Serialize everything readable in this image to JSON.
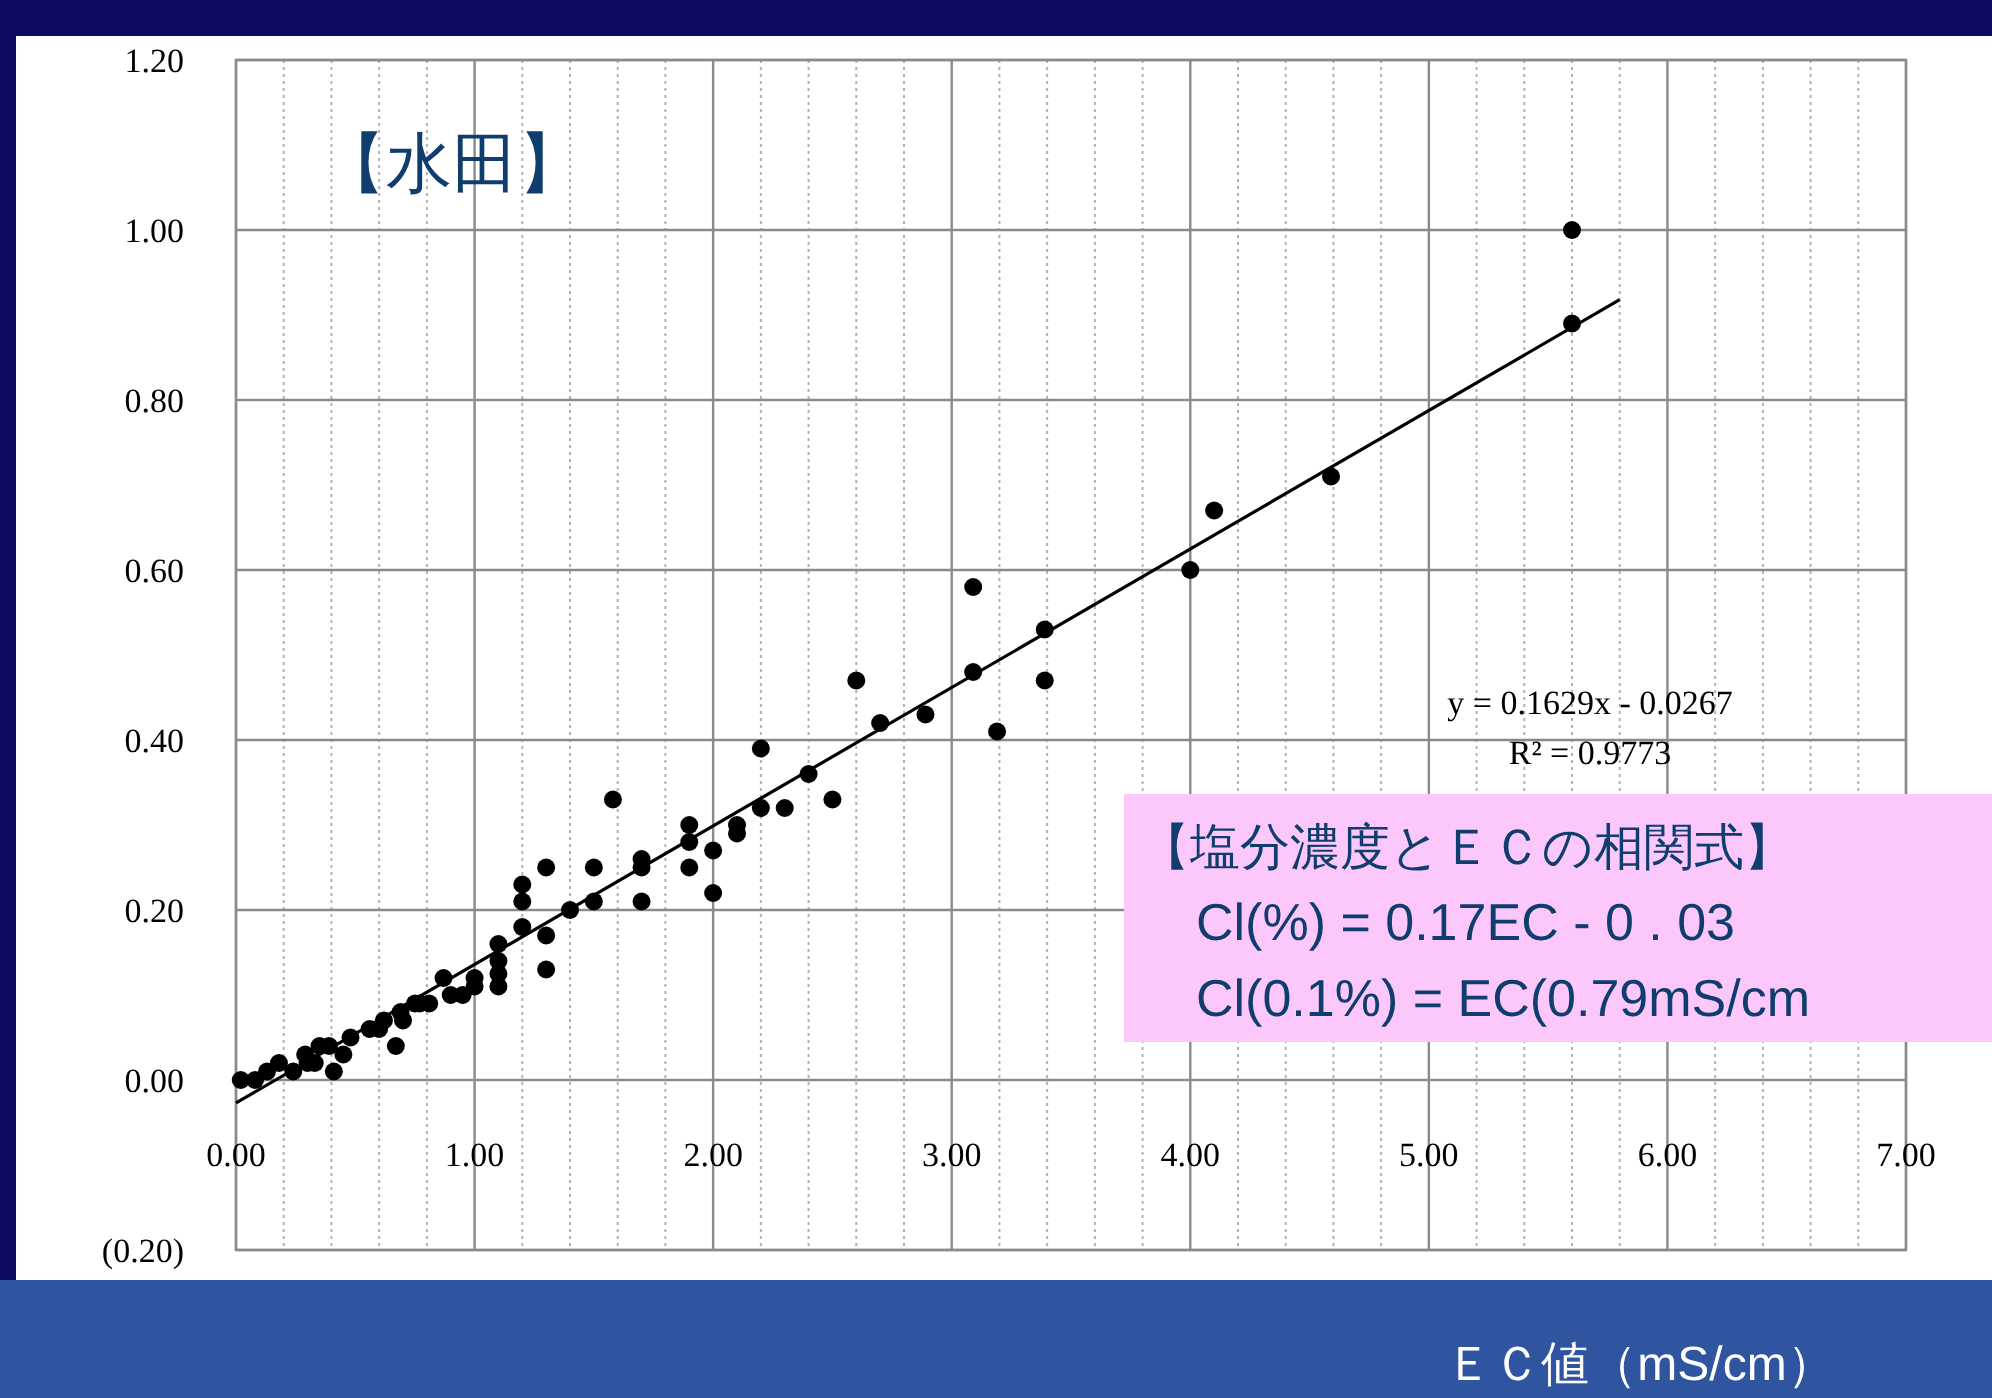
{
  "chart_data": {
    "type": "scatter",
    "title": "【水田】",
    "xlabel": "ＥＣ値（mS/cm）",
    "xlim": [
      0,
      7
    ],
    "ylim": [
      -0.2,
      1.2
    ],
    "xticks": [
      {
        "value": 0,
        "label": "0.00"
      },
      {
        "value": 1,
        "label": "1.00"
      },
      {
        "value": 2,
        "label": "2.00"
      },
      {
        "value": 3,
        "label": "3.00"
      },
      {
        "value": 4,
        "label": "4.00"
      },
      {
        "value": 5,
        "label": "5.00"
      },
      {
        "value": 6,
        "label": "6.00"
      },
      {
        "value": 7,
        "label": "7.00"
      }
    ],
    "yticks": [
      {
        "value": -0.2,
        "label": "(0.20)"
      },
      {
        "value": 0,
        "label": "0.00"
      },
      {
        "value": 0.2,
        "label": "0.20"
      },
      {
        "value": 0.4,
        "label": "0.40"
      },
      {
        "value": 0.6,
        "label": "0.60"
      },
      {
        "value": 0.8,
        "label": "0.80"
      },
      {
        "value": 1.0,
        "label": "1.00"
      },
      {
        "value": 1.2,
        "label": "1.20"
      }
    ],
    "grid": true,
    "series": [
      {
        "type": "scatter",
        "marker": "circle",
        "color": "#000000",
        "x": [
          5.6,
          5.6,
          4.59,
          4.1,
          4.0,
          3.39,
          3.39,
          3.09,
          3.09,
          3.19,
          2.89,
          2.7,
          2.6,
          2.5,
          2.4,
          2.3,
          2.2,
          2.2,
          2.1,
          2.1,
          2.0,
          2.0,
          1.9,
          1.9,
          1.9,
          1.7,
          1.7,
          1.7,
          1.58,
          1.5,
          1.5,
          1.4,
          1.3,
          1.3,
          1.3,
          1.2,
          1.2,
          1.2,
          1.1,
          1.1,
          1.1,
          1.1,
          1.0,
          1.0,
          0.95,
          0.9,
          0.87,
          0.81,
          0.77,
          0.75,
          0.7,
          0.69,
          0.67,
          0.62,
          0.6,
          0.56,
          0.48,
          0.45,
          0.41,
          0.39,
          0.35,
          0.33,
          0.3,
          0.29,
          0.24,
          0.18,
          0.13,
          0.08,
          0.02
        ],
        "values": [
          1.0,
          0.89,
          0.71,
          0.67,
          0.6,
          0.53,
          0.47,
          0.58,
          0.48,
          0.41,
          0.43,
          0.42,
          0.47,
          0.33,
          0.36,
          0.32,
          0.39,
          0.32,
          0.3,
          0.29,
          0.27,
          0.22,
          0.3,
          0.28,
          0.25,
          0.26,
          0.25,
          0.21,
          0.33,
          0.25,
          0.21,
          0.2,
          0.25,
          0.17,
          0.13,
          0.23,
          0.21,
          0.18,
          0.16,
          0.14,
          0.125,
          0.11,
          0.12,
          0.11,
          0.1,
          0.1,
          0.12,
          0.09,
          0.09,
          0.09,
          0.07,
          0.08,
          0.04,
          0.07,
          0.06,
          0.06,
          0.05,
          0.03,
          0.01,
          0.04,
          0.04,
          0.02,
          0.02,
          0.03,
          0.01,
          0.02,
          0.01,
          0.0,
          0.0
        ]
      },
      {
        "type": "line",
        "color": "#000000",
        "x": [
          0,
          5.8
        ],
        "values": [
          -0.027,
          0.918
        ]
      }
    ],
    "annotations": [
      "y = 0.1629x - 0.0267",
      "R² = 0.9773",
      "【塩分濃度とＥＣの相関式】",
      "Cl(%) = 0.17EC  - 0 . 03",
      "Cl(0.1%) = EC(0.79mS/cm"
    ]
  }
}
